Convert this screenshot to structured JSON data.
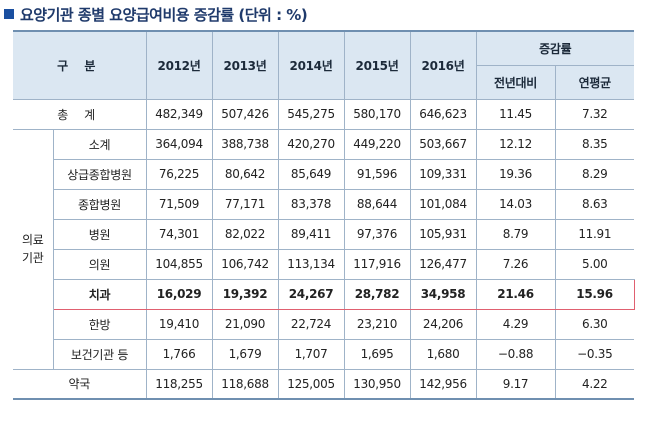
{
  "title": "요양기관 종별 요양급여비용 증감률 (단위 : %)",
  "header": {
    "category_label": "구  분",
    "years": [
      "2012년",
      "2013년",
      "2014년",
      "2015년",
      "2016년"
    ],
    "growth_group_label": "증감률",
    "growth_cols": [
      "전년대비",
      "연평균"
    ]
  },
  "rows": {
    "total": {
      "label": "총  계",
      "values": [
        "482,349",
        "507,426",
        "545,275",
        "580,170",
        "646,623",
        "11.45",
        "7.32"
      ]
    },
    "medical_group_label": "의료 기관",
    "medical": [
      {
        "label": "소계",
        "values": [
          "364,094",
          "388,738",
          "420,270",
          "449,220",
          "503,667",
          "12.12",
          "8.35"
        ]
      },
      {
        "label": "상급종합병원",
        "values": [
          "76,225",
          "80,642",
          "85,649",
          "91,596",
          "109,331",
          "19.36",
          "8.29"
        ]
      },
      {
        "label": "종합병원",
        "values": [
          "71,509",
          "77,171",
          "83,378",
          "88,644",
          "101,084",
          "14.03",
          "8.63"
        ]
      },
      {
        "label": "병원",
        "values": [
          "74,301",
          "82,022",
          "89,411",
          "97,376",
          "105,931",
          "8.79",
          "11.91"
        ]
      },
      {
        "label": "의원",
        "values": [
          "104,855",
          "106,742",
          "113,134",
          "117,916",
          "126,477",
          "7.26",
          "5.00"
        ]
      },
      {
        "label": "치과",
        "values": [
          "16,029",
          "19,392",
          "24,267",
          "28,782",
          "34,958",
          "21.46",
          "15.96"
        ]
      },
      {
        "label": "한방",
        "values": [
          "19,410",
          "21,090",
          "22,724",
          "23,210",
          "24,206",
          "4.29",
          "6.30"
        ]
      },
      {
        "label": "보건기관 등",
        "values": [
          "1,766",
          "1,679",
          "1,707",
          "1,695",
          "1,680",
          "−0.88",
          "−0.35"
        ]
      }
    ],
    "pharmacy": {
      "label": "약국",
      "values": [
        "118,255",
        "118,688",
        "125,005",
        "130,950",
        "142,956",
        "9.17",
        "4.22"
      ]
    }
  }
}
